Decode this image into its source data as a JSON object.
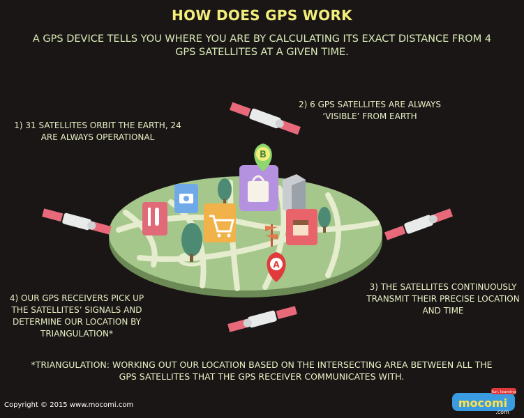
{
  "header": {
    "title": "HOW DOES GPS WORK",
    "subtitle": "A GPS DEVICE TELLS YOU WHERE YOU ARE BY CALCULATING ITS EXACT DISTANCE FROM 4 GPS SATELLITES AT A GIVEN TIME."
  },
  "facts": {
    "fact1": "1) 31 SATELLITES ORBIT THE EARTH, 24 ARE ALWAYS OPERATIONAL",
    "fact2": "2) 6 GPS SATELLITES ARE ALWAYS ‘VISIBLE’ FROM EARTH",
    "fact3": "3) THE SATELLITES CONTINUOUSLY TRANSMIT THEIR PRECISE LOCATION AND TIME",
    "fact4": "4) OUR GPS RECEIVERS PICK UP THE SATELLITES’ SIGNALS AND DETERMINE OUR LOCATION BY TRIANGULATION*"
  },
  "footnote": "*TRIANGULATION: WORKING OUT OUR LOCATION BASED ON THE INTERSECTING AREA BETWEEN ALL THE GPS SATELLITES THAT THE GPS RECEIVER COMMUNICATES WITH.",
  "footer": {
    "copyright": "Copyright © 2015 www.mocomi.com",
    "logo_text": "mocomi",
    "logo_sub": ".com",
    "logo_tag": "fun. learning"
  },
  "map": {
    "pin_top_letter": "B",
    "pin_bottom_letter": "A"
  },
  "colors": {
    "background": "#1b1616",
    "title": "#f2ee7a",
    "text": "#e6f0c4",
    "ground": "#a6c78b",
    "road": "#e6ecce",
    "pin": "#e03a3a",
    "pin_green": "#8fd66e"
  }
}
